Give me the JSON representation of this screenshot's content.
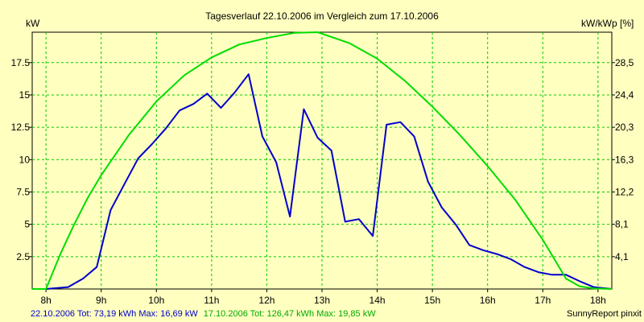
{
  "chart_data": {
    "type": "line",
    "title": "Tagesverlauf 22.10.2006 im Vergleich zum 17.10.2006",
    "ylabel_left": "kW",
    "ylabel_right": "kW/kWp [%]",
    "xlim": [
      7.75,
      18.25
    ],
    "ylim": [
      0,
      19.85
    ],
    "grid": true,
    "x_ticks": [
      {
        "x": 8,
        "label": "8h"
      },
      {
        "x": 9,
        "label": "9h"
      },
      {
        "x": 10,
        "label": "10h"
      },
      {
        "x": 11,
        "label": "11h"
      },
      {
        "x": 12,
        "label": "12h"
      },
      {
        "x": 13,
        "label": "13h"
      },
      {
        "x": 14,
        "label": "14h"
      },
      {
        "x": 15,
        "label": "15h"
      },
      {
        "x": 16,
        "label": "16h"
      },
      {
        "x": 17,
        "label": "17h"
      },
      {
        "x": 18,
        "label": "18h"
      }
    ],
    "y_ticks_left": [
      {
        "y": 2.5,
        "label": "2.5"
      },
      {
        "y": 5,
        "label": "5"
      },
      {
        "y": 7.5,
        "label": "7.5"
      },
      {
        "y": 10,
        "label": "10"
      },
      {
        "y": 12.5,
        "label": "12.5"
      },
      {
        "y": 15,
        "label": "15"
      },
      {
        "y": 17.5,
        "label": "17.5"
      }
    ],
    "y_ticks_right": [
      {
        "y": 2.5,
        "label": "4,1"
      },
      {
        "y": 5,
        "label": "8,1"
      },
      {
        "y": 7.5,
        "label": "12,2"
      },
      {
        "y": 10,
        "label": "16,3"
      },
      {
        "y": 12.5,
        "label": "20,3"
      },
      {
        "y": 15,
        "label": "24,4"
      },
      {
        "y": 17.5,
        "label": "28,5"
      }
    ],
    "series": [
      {
        "name": "22.10.2006",
        "color": "#0000cc",
        "x": [
          7.75,
          8.0,
          8.4,
          8.67,
          8.92,
          9.17,
          9.42,
          9.67,
          9.92,
          10.17,
          10.42,
          10.67,
          10.92,
          11.17,
          11.42,
          11.67,
          11.92,
          12.17,
          12.42,
          12.67,
          12.92,
          13.17,
          13.42,
          13.67,
          13.92,
          14.17,
          14.42,
          14.67,
          14.92,
          15.17,
          15.42,
          15.67,
          15.92,
          16.17,
          16.42,
          16.67,
          16.92,
          17.17,
          17.42,
          17.67,
          17.92,
          18.25
        ],
        "values": [
          0,
          0,
          0.15,
          0.8,
          1.7,
          6.1,
          8.1,
          10.1,
          11.2,
          12.4,
          13.8,
          14.3,
          15.1,
          14.0,
          15.2,
          16.6,
          11.8,
          9.8,
          5.6,
          13.9,
          11.7,
          10.7,
          5.2,
          5.4,
          4.1,
          12.7,
          12.9,
          11.8,
          8.3,
          6.3,
          5.0,
          3.4,
          3.0,
          2.7,
          2.3,
          1.7,
          1.3,
          1.1,
          1.1,
          0.6,
          0.15,
          0
        ]
      },
      {
        "name": "17.10.2006",
        "color": "#00dd00",
        "x": [
          7.75,
          8.0,
          8.25,
          8.5,
          8.75,
          9.0,
          9.5,
          10.0,
          10.5,
          11.0,
          11.5,
          12.0,
          12.5,
          12.92,
          13.5,
          14.0,
          14.5,
          15.0,
          15.5,
          16.0,
          16.5,
          17.0,
          17.42,
          17.67,
          17.92,
          18.25
        ],
        "values": [
          0,
          0,
          2.6,
          4.9,
          7.0,
          8.8,
          11.9,
          14.5,
          16.5,
          17.9,
          18.9,
          19.4,
          19.8,
          19.85,
          19.0,
          17.8,
          16.1,
          14.1,
          11.9,
          9.5,
          6.9,
          3.8,
          0.8,
          0.2,
          0.05,
          0
        ]
      }
    ]
  },
  "footer": {
    "left_1": "22.10.2006 Tot: 73,19 kWh Max: 16,69 kW",
    "left_2": "17.10.2006 Tot: 126,47 kWh Max: 19,85 kW",
    "left_1_color": "#0000cc",
    "left_2_color": "#00aa00",
    "right": "SunnyReport pinxit"
  }
}
